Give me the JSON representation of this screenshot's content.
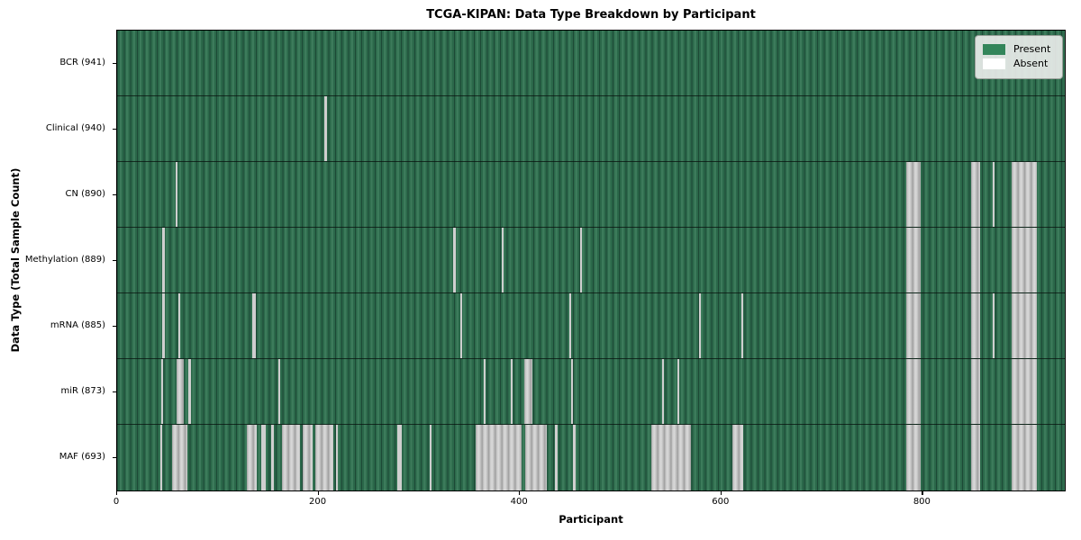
{
  "figure": {
    "title": "TCGA-KIPAN: Data Type Breakdown by Participant",
    "xlabel": "Participant",
    "ylabel": "Data Type (Total Sample Count)"
  },
  "legend": {
    "items": [
      {
        "label": "Present",
        "color": "#33855a"
      },
      {
        "label": "Absent",
        "color": "#ffffff"
      }
    ]
  },
  "chart_data": {
    "type": "heatmap",
    "title": "TCGA-KIPAN: Data Type Breakdown by Participant",
    "xlabel": "Participant",
    "ylabel": "Data Type (Total Sample Count)",
    "x_ticks": [
      0,
      200,
      400,
      600,
      800
    ],
    "xlim": [
      0,
      941
    ],
    "total_participants": 941,
    "legend_position": "upper right",
    "grid": false,
    "colors": {
      "present": "#2b684a",
      "absent": "#cfcfcf",
      "present_legend": "#33855a"
    },
    "legend_entries": [
      "Present",
      "Absent"
    ],
    "rows": [
      {
        "label": "BCR",
        "count": 941,
        "absent_ranges": []
      },
      {
        "label": "Clinical",
        "count": 940,
        "absent_ranges": [
          [
            206,
            208
          ]
        ]
      },
      {
        "label": "CN",
        "count": 890,
        "absent_ranges": [
          [
            58,
            60
          ],
          [
            784,
            798
          ],
          [
            848,
            857
          ],
          [
            869,
            871
          ],
          [
            888,
            913
          ]
        ]
      },
      {
        "label": "Methylation",
        "count": 889,
        "absent_ranges": [
          [
            45,
            47
          ],
          [
            334,
            336
          ],
          [
            382,
            384
          ],
          [
            460,
            462
          ],
          [
            784,
            798
          ],
          [
            848,
            857
          ],
          [
            888,
            913
          ]
        ]
      },
      {
        "label": "mRNA",
        "count": 885,
        "absent_ranges": [
          [
            45,
            47
          ],
          [
            61,
            63
          ],
          [
            134,
            138
          ],
          [
            341,
            343
          ],
          [
            449,
            451
          ],
          [
            578,
            580
          ],
          [
            620,
            622
          ],
          [
            784,
            798
          ],
          [
            848,
            857
          ],
          [
            869,
            871
          ],
          [
            888,
            913
          ]
        ]
      },
      {
        "label": "miR",
        "count": 873,
        "absent_ranges": [
          [
            44,
            46
          ],
          [
            59,
            66
          ],
          [
            71,
            73
          ],
          [
            160,
            162
          ],
          [
            364,
            366
          ],
          [
            391,
            393
          ],
          [
            404,
            412
          ],
          [
            451,
            453
          ],
          [
            541,
            543
          ],
          [
            556,
            558
          ],
          [
            784,
            798
          ],
          [
            848,
            857
          ],
          [
            888,
            913
          ]
        ]
      },
      {
        "label": "MAF",
        "count": 693,
        "absent_ranges": [
          [
            43,
            45
          ],
          [
            55,
            70
          ],
          [
            129,
            139
          ],
          [
            143,
            148
          ],
          [
            153,
            156
          ],
          [
            164,
            182
          ],
          [
            184,
            194
          ],
          [
            197,
            215
          ],
          [
            217,
            219
          ],
          [
            278,
            283
          ],
          [
            310,
            312
          ],
          [
            356,
            402
          ],
          [
            405,
            427
          ],
          [
            435,
            437
          ],
          [
            453,
            455
          ],
          [
            530,
            570
          ],
          [
            611,
            622
          ],
          [
            784,
            798
          ],
          [
            848,
            857
          ],
          [
            888,
            913
          ]
        ]
      }
    ]
  }
}
